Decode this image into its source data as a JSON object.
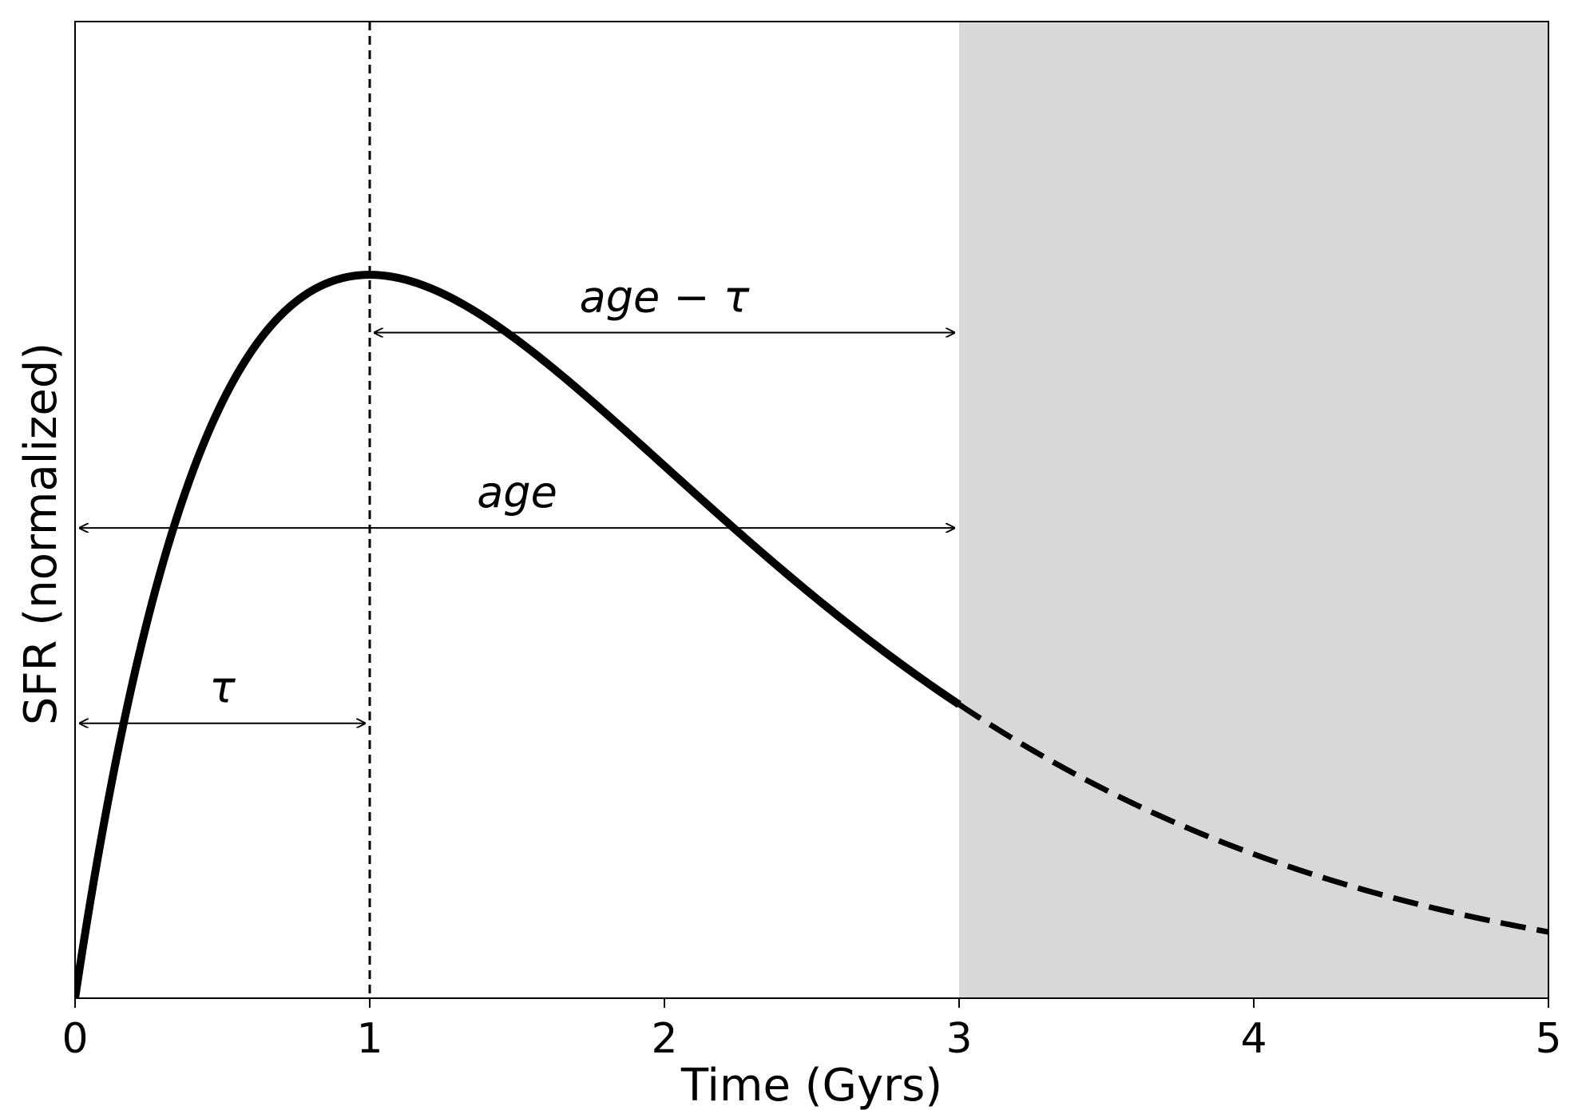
{
  "chart_data": {
    "type": "line",
    "xlabel": "Time (Gyrs)",
    "ylabel": "SFR (normalized)",
    "xlim": [
      0,
      5
    ],
    "ylim": [
      0,
      1.35
    ],
    "x_ticks": [
      "0",
      "1",
      "2",
      "3",
      "4",
      "5"
    ],
    "grid": false,
    "curve": {
      "form": "t * exp(-t / tau), normalized to peak 1",
      "tau": 1,
      "age": 3,
      "solid_range": [
        0,
        3
      ],
      "dashed_range": [
        3,
        5
      ]
    },
    "shaded_region": {
      "x_from": 3,
      "x_to": 5,
      "color": "#d8d8d8"
    },
    "vertical_line": {
      "x": 1,
      "style": "dashed"
    },
    "annotations": [
      {
        "label": "τ",
        "from": 0,
        "to": 1,
        "level": 0.38
      },
      {
        "label": "age",
        "from": 0,
        "to": 3,
        "level": 0.65
      },
      {
        "label": "age − τ",
        "from": 1,
        "to": 3,
        "level": 0.92
      }
    ]
  }
}
